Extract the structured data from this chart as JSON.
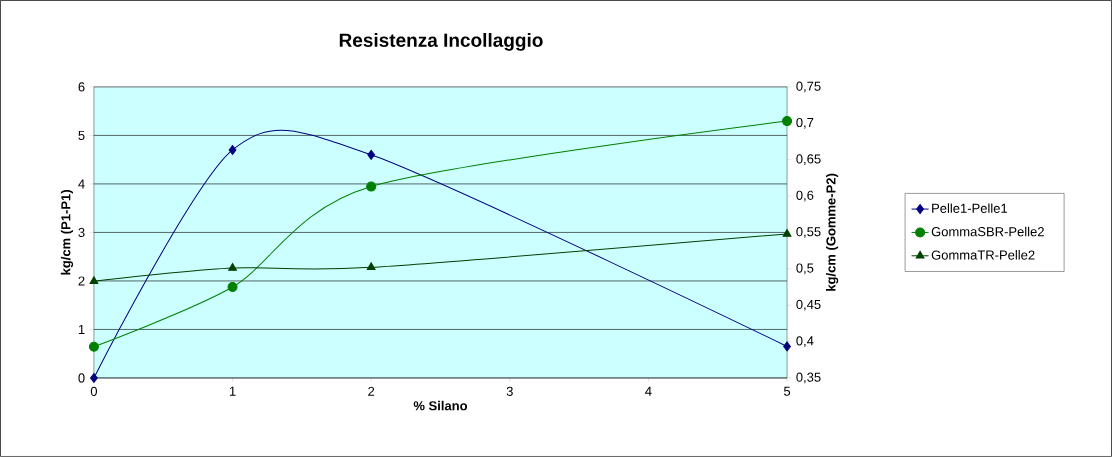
{
  "chart_data": {
    "type": "line",
    "title": "Resistenza Incollaggio",
    "xlabel": "% Silano",
    "ylabel": "kg/cm (P1-P1)",
    "y2label": "kg/cm (Gomme-P2)",
    "x": [
      0,
      1,
      2,
      5
    ],
    "series": [
      {
        "name": "Pelle1-Pelle1",
        "color": "#000080",
        "marker": "diamond",
        "values": [
          0,
          4.7,
          4.6,
          0.65
        ]
      },
      {
        "name": "GommaSBR-Pelle2",
        "color": "#008000",
        "marker": "circle",
        "axis": "y2",
        "values": [
          0.393,
          0.475,
          0.613,
          0.703
        ]
      },
      {
        "name": "GommaTR-Pelle2",
        "color": "#004000",
        "marker": "triangle",
        "axis": "y2",
        "values": [
          0.483,
          0.501,
          0.502,
          0.548
        ]
      }
    ],
    "xlim": [
      0,
      5
    ],
    "xticks": [
      0,
      1,
      2,
      3,
      4,
      5
    ],
    "ylim": [
      0,
      6
    ],
    "yticks": [
      0,
      1,
      2,
      3,
      4,
      5,
      6
    ],
    "y2lim": [
      0.35,
      0.75
    ],
    "y2ticks": [
      {
        "value": 0.35,
        "label": "0,35"
      },
      {
        "value": 0.4,
        "label": "0,4"
      },
      {
        "value": 0.45,
        "label": "0,45"
      },
      {
        "value": 0.5,
        "label": "0,5"
      },
      {
        "value": 0.55,
        "label": "0,55"
      },
      {
        "value": 0.6,
        "label": "0,6"
      },
      {
        "value": 0.65,
        "label": "0,65"
      },
      {
        "value": 0.7,
        "label": "0,7"
      },
      {
        "value": 0.75,
        "label": "0,75"
      }
    ],
    "grid": "y",
    "legend": "right",
    "line_style": "solid"
  }
}
